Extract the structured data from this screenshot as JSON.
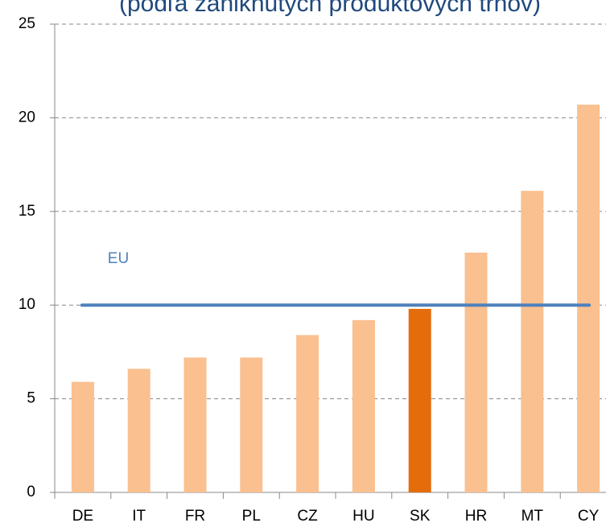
{
  "chart_data": {
    "type": "bar",
    "subtitle": "(podľa zaniknutých produktových trhov)",
    "categories": [
      "DE",
      "IT",
      "FR",
      "PL",
      "CZ",
      "HU",
      "SK",
      "HR",
      "MT",
      "CY"
    ],
    "values": [
      5.9,
      6.6,
      7.2,
      7.2,
      8.4,
      9.2,
      9.8,
      12.8,
      16.1,
      20.7
    ],
    "colors": [
      "#fac090",
      "#fac090",
      "#fac090",
      "#fac090",
      "#fac090",
      "#fac090",
      "#e46c0a",
      "#fac090",
      "#fac090",
      "#fac090"
    ],
    "reference_lines": [
      {
        "label": "EU",
        "value": 10,
        "color": "#4f81bd"
      }
    ],
    "ylim": [
      0,
      25
    ],
    "yticks": [
      0,
      5,
      10,
      15,
      20,
      25
    ],
    "grid": true
  }
}
